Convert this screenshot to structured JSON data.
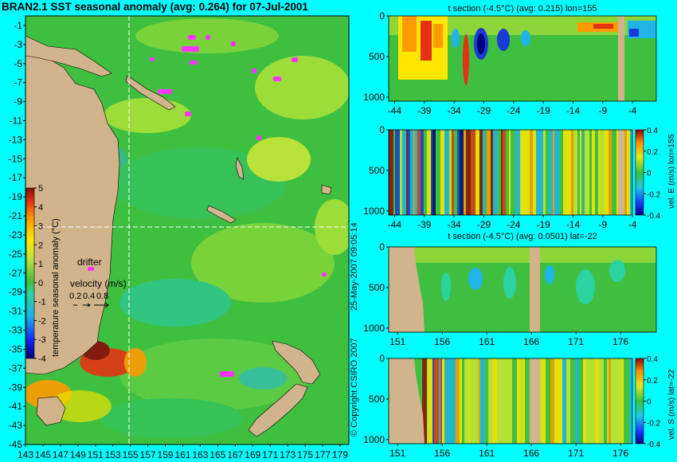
{
  "colors": {
    "background": "#00ffff",
    "land": "#d2b48c",
    "ocean": "#3fbf3f",
    "warm": "#d62020",
    "cold": "#1a3ad6",
    "drifter": "#ff33ff",
    "guide": "#ffffff"
  },
  "chart_data": [
    {
      "id": "map",
      "type": "heatmap",
      "title": "BRAN2.1 SST seasonal anomaly (avg: 0.264) for 07-Jul-2001",
      "xticks": [
        "143",
        "145",
        "147",
        "149",
        "151",
        "153",
        "155",
        "157",
        "159",
        "161",
        "163",
        "165",
        "167",
        "169",
        "171",
        "173",
        "175",
        "177",
        "179"
      ],
      "yticks": [
        "-1",
        "-3",
        "-5",
        "-7",
        "-9",
        "-11",
        "-13",
        "-15",
        "-17",
        "-19",
        "-21",
        "-23",
        "-25",
        "-27",
        "-29",
        "-31",
        "-33",
        "-35",
        "-37",
        "-39",
        "-41",
        "-43",
        "-45"
      ],
      "xlim": [
        143,
        180
      ],
      "ylim": [
        -45,
        0
      ],
      "guides": {
        "lon": 155,
        "lat": -22
      },
      "colorbar": {
        "label": "temperature seasonal anomaly (°C)",
        "ticks": [
          "5",
          "4",
          "3",
          "2",
          "1",
          "0",
          "-1",
          "-2",
          "-3",
          "-4"
        ],
        "range": [
          -4,
          5
        ]
      },
      "legend": {
        "drifter_label": "drifter",
        "velocity_label": "velocity (m/s)",
        "velocity_values": [
          "0.2",
          "0.4",
          "0.8"
        ]
      }
    },
    {
      "id": "panel1",
      "type": "heatmap",
      "title": "t section (-4.5°C) (avg: 0.215) lon=155",
      "xticks": [
        "-44",
        "-39",
        "-34",
        "-29",
        "-24",
        "-19",
        "-14",
        "-9",
        "-4"
      ],
      "yticks": [
        "0",
        "500",
        "1000"
      ],
      "xlim": [
        -45,
        0
      ],
      "ylim": [
        0,
        1050
      ]
    },
    {
      "id": "panel2",
      "type": "heatmap",
      "title": "",
      "xticks": [
        "-44",
        "-39",
        "-34",
        "-29",
        "-24",
        "-19",
        "-14",
        "-9",
        "-4"
      ],
      "yticks": [
        "0",
        "500",
        "1000"
      ],
      "xlim": [
        -45,
        0
      ],
      "ylim": [
        0,
        1050
      ],
      "colorbar": {
        "label": "vel. E (m/s) lon=155",
        "ticks": [
          "0.4",
          "0.2",
          "0",
          "-0.2",
          "-0.4"
        ],
        "range": [
          -0.4,
          0.4
        ]
      }
    },
    {
      "id": "panel3",
      "type": "heatmap",
      "title": "t section (-4.5°C) (avg: 0.0501) lat=-22",
      "xticks": [
        "151",
        "156",
        "161",
        "166",
        "171",
        "176"
      ],
      "yticks": [
        "0",
        "500",
        "1000"
      ],
      "xlim": [
        150,
        180
      ],
      "ylim": [
        0,
        1050
      ]
    },
    {
      "id": "panel4",
      "type": "heatmap",
      "title": "",
      "xticks": [
        "151",
        "156",
        "161",
        "166",
        "171",
        "176"
      ],
      "yticks": [
        "0",
        "500",
        "1000"
      ],
      "xlim": [
        150,
        180
      ],
      "ylim": [
        0,
        1050
      ],
      "colorbar": {
        "label": "vel. S (m/s) lat=-22",
        "ticks": [
          "0.4",
          "0.2",
          "0",
          "-0.2",
          "-0.4"
        ],
        "range": [
          -0.4,
          0.4
        ]
      }
    }
  ],
  "copyright": "© Copyright CSIRO 2007",
  "timestamp": "25-May-2007 09:05:14"
}
